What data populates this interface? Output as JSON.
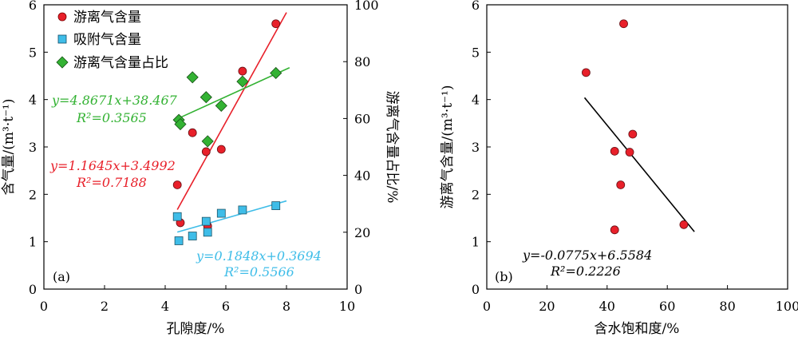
{
  "chart_data": [
    {
      "panel": "(a)",
      "type": "scatter",
      "xlabel": "孔隙度/%",
      "ylabel": "含气量/(m³·t⁻¹)",
      "y2label": "游离气含量占比/%",
      "xlim": [
        0,
        10
      ],
      "ylim": [
        0,
        6
      ],
      "y2lim": [
        0,
        100
      ],
      "xticks": [
        "0",
        "2",
        "4",
        "6",
        "8",
        "10"
      ],
      "yticks": [
        "0",
        "1",
        "2",
        "3",
        "4",
        "5",
        "6"
      ],
      "y2ticks": [
        "0",
        "20",
        "40",
        "60",
        "80",
        "100"
      ],
      "legend_position": "top-left",
      "series": [
        {
          "name": "游离气含量",
          "axis": "left",
          "marker": "circle",
          "color": "#e8202a",
          "x": [
            4.4,
            4.5,
            4.9,
            5.35,
            5.4,
            5.85,
            6.55,
            7.65
          ],
          "y": [
            2.2,
            1.4,
            3.3,
            2.9,
            1.33,
            2.95,
            4.6,
            5.6
          ],
          "fit": {
            "slope": 1.1645,
            "intercept": 3.4992,
            "x_range": [
              4.4,
              8.0
            ],
            "equation_text": "y=1.1645x+3.4992",
            "r2_text": "R²=0.7188",
            "color": "#e8202a"
          }
        },
        {
          "name": "吸附气含量",
          "axis": "left",
          "marker": "square",
          "color": "#3fbde8",
          "x": [
            4.4,
            4.45,
            4.9,
            5.35,
            5.4,
            5.85,
            6.55,
            7.65
          ],
          "y": [
            1.53,
            1.02,
            1.12,
            1.43,
            1.2,
            1.6,
            1.67,
            1.76
          ],
          "fit": {
            "slope": 0.1848,
            "intercept": 0.3694,
            "x_range": [
              4.4,
              8.0
            ],
            "equation_text": "y=0.1848x+0.3694",
            "r2_text": "R²=0.5566",
            "color": "#3fbde8"
          }
        },
        {
          "name": "游离气含量占比",
          "axis": "right",
          "marker": "diamond",
          "color": "#33b233",
          "x": [
            4.45,
            4.5,
            4.9,
            5.35,
            5.4,
            5.85,
            6.55,
            7.65
          ],
          "y": [
            59.5,
            58,
            74.5,
            67.5,
            52,
            64.5,
            73,
            76
          ],
          "fit": {
            "slope": 4.8671,
            "intercept": 38.467,
            "x_range": [
              4.4,
              8.1
            ],
            "equation_text": "y=4.8671x+38.467",
            "r2_text": "R²=0.3565",
            "color": "#33b233"
          }
        }
      ]
    },
    {
      "panel": "(b)",
      "type": "scatter",
      "xlabel": "含水饱和度/%",
      "ylabel": "游离气含量/(m³·t⁻¹)",
      "xlim": [
        0,
        100
      ],
      "ylim": [
        0,
        6
      ],
      "xticks": [
        "0",
        "20",
        "40",
        "60",
        "80",
        "100"
      ],
      "yticks": [
        "0",
        "1",
        "2",
        "3",
        "4",
        "5",
        "6"
      ],
      "series": [
        {
          "name": "",
          "marker": "circle",
          "color": "#e8202a",
          "x": [
            33,
            42.5,
            42.5,
            44.5,
            45.5,
            47.5,
            48.5,
            65.5
          ],
          "y": [
            4.57,
            1.25,
            2.91,
            2.2,
            5.6,
            2.89,
            3.27,
            1.36
          ],
          "fit": {
            "slope": -0.0775,
            "intercept": 6.5584,
            "x_range": [
              32.5,
              69
            ],
            "equation_text": "y=-0.0775x+6.5584",
            "r2_text": "R²=0.2226",
            "color": "#000000"
          }
        }
      ]
    }
  ]
}
